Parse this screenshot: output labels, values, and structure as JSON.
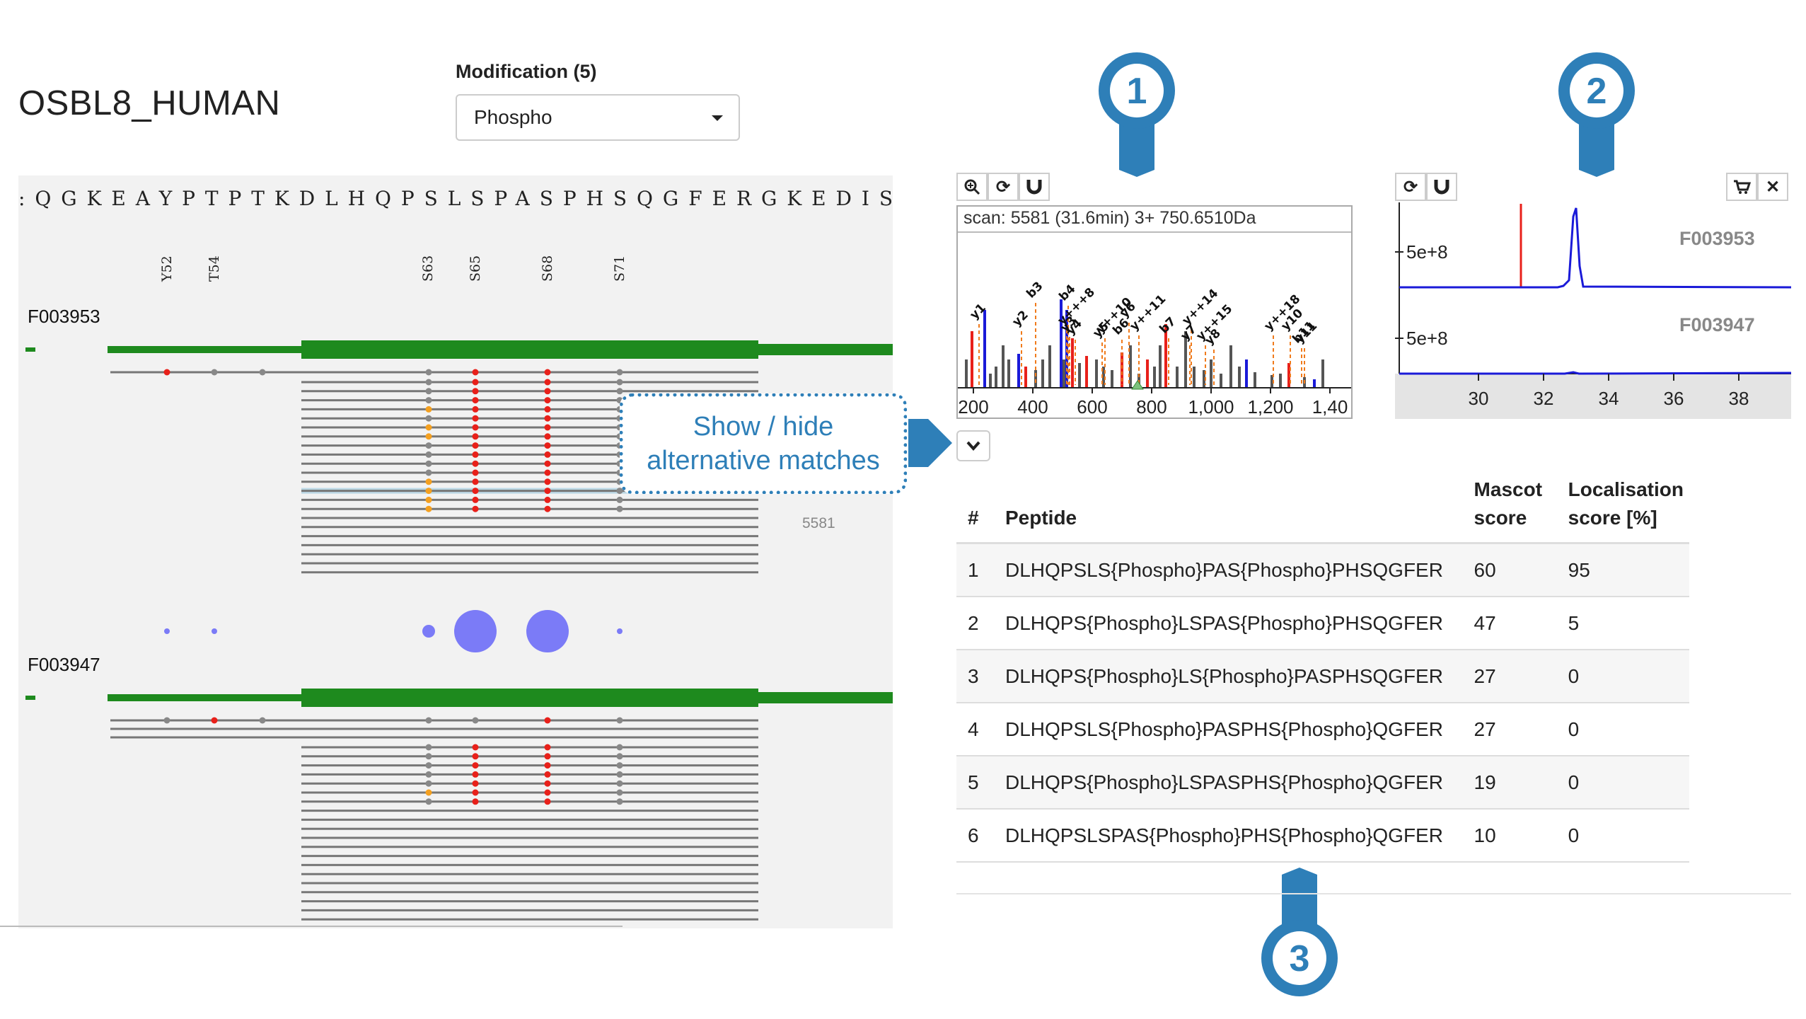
{
  "protein": {
    "name": "OSBL8_HUMAN"
  },
  "modification": {
    "label": "Modification (5)",
    "selected": "Phospho"
  },
  "sequence": ":QGKEAYPTPTKDLHQPSLSPASPHSQGFERGKEDIS",
  "sites": [
    "Y52",
    "T54",
    "S63",
    "S65",
    "S68",
    "S71"
  ],
  "samples": [
    {
      "name": "F003953"
    },
    {
      "name": "F003947"
    }
  ],
  "highlighted_scan_label": "5581",
  "callout": {
    "line1": "Show / hide",
    "line2": "alternative matches"
  },
  "markers": [
    "1",
    "2",
    "3"
  ],
  "spectrum": {
    "scan_info": "scan: 5581 (31.6min) 3+ 750.6510Da",
    "x_ticks": [
      "200",
      "400",
      "600",
      "800",
      "1,000",
      "1,200",
      "1,40"
    ],
    "ion_labels": [
      "y1",
      "y2",
      "b3",
      "b4",
      "y+++8",
      "y3",
      "y4",
      "y++10",
      "y5",
      "b6",
      "y6",
      "y++11",
      "b7",
      "y++14",
      "y7",
      "y8",
      "y++15",
      "y++18",
      "y10",
      "b11",
      "y11"
    ]
  },
  "xic": {
    "y_ticks": [
      "5e+8",
      "5e+8"
    ],
    "x_ticks": [
      "30",
      "32",
      "34",
      "36",
      "38"
    ],
    "traces": [
      "F003953",
      "F003947"
    ]
  },
  "table": {
    "headers": {
      "num": "#",
      "peptide": "Peptide",
      "mascot1": "Mascot",
      "mascot2": "score",
      "loc1": "Localisation",
      "loc2": "score [%]"
    },
    "rows": [
      {
        "n": "1",
        "peptide": "DLHQPSLS{Phospho}PAS{Phospho}PHSQGFER",
        "mascot": "60",
        "loc": "95"
      },
      {
        "n": "2",
        "peptide": "DLHQPS{Phospho}LSPAS{Phospho}PHSQGFER",
        "mascot": "47",
        "loc": "5"
      },
      {
        "n": "3",
        "peptide": "DLHQPS{Phospho}LS{Phospho}PASPHSQGFER",
        "mascot": "27",
        "loc": "0"
      },
      {
        "n": "4",
        "peptide": "DLHQPSLS{Phospho}PASPHS{Phospho}QGFER",
        "mascot": "27",
        "loc": "0"
      },
      {
        "n": "5",
        "peptide": "DLHQPS{Phospho}LSPASPHS{Phospho}QGFER",
        "mascot": "19",
        "loc": "0"
      },
      {
        "n": "6",
        "peptide": "DLHQPSLSPAS{Phospho}PHS{Phospho}QGFER",
        "mascot": "10",
        "loc": "0"
      }
    ]
  },
  "colors": {
    "accent": "#2e7fb8",
    "coverage": "#1e8a1e",
    "phospho": "#e8201a",
    "ambiguous": "#f4a020",
    "bubble": "#7b7bf7",
    "trace": "#1a1ad8"
  }
}
